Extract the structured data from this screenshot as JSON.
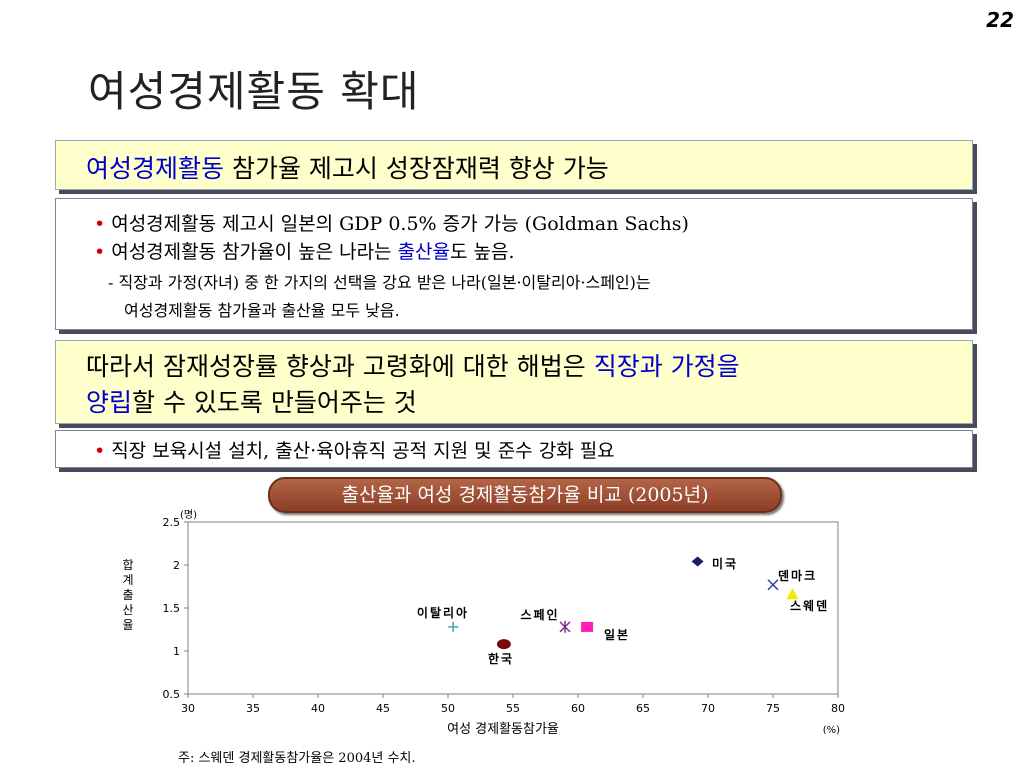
{
  "page_number": "22",
  "title": "여성경제활동 확대",
  "headline": {
    "blue_part": "여성경제활동",
    "black_part": " 참가율 제고시 성장잠재력 향상 가능"
  },
  "points": {
    "bullet1": "여성경제활동 제고시 일본의 GDP 0.5% 증가 가능 (Goldman Sachs)",
    "bullet2_before": "여성경제활동 참가율이 높은 나라는 ",
    "bullet2_blue": "출산율",
    "bullet2_after": "도 높음.",
    "sub1": "- 직장과 가정(자녀) 중 한 가지의 선택을 강요 받은 나라(일본·이탈리아·스페인)는",
    "sub2": "여성경제활동 참가율과 출산율 모두 낮음."
  },
  "solution": {
    "line1_black": "따라서 잠재성장률 향상과 고령화에 대한 해법은 ",
    "line1_blue": "직장과 가정을",
    "line2_blue": "양립",
    "line2_black": "할 수 있도록 만들어주는 것"
  },
  "action": {
    "bullet": "직장 보육시설 설치, 출산·육아휴직 공적 지원 및 준수 강화 필요"
  },
  "chart_title": "출산율과 여성 경제활동참가율 비교 (2005년)",
  "footnote": "주: 스웨덴 경제활동참가율은 2004년 수치.",
  "chart_data": {
    "type": "scatter",
    "title": "출산율과 여성 경제활동참가율 비교 (2005년)",
    "xlabel": "여성 경제활동참가율",
    "x_unit": "(%)",
    "ylabel": "합계출산율",
    "y_unit": "(명)",
    "xlim": [
      30,
      80
    ],
    "ylim": [
      0.5,
      2.5
    ],
    "x_ticks": [
      "30",
      "35",
      "40",
      "45",
      "50",
      "55",
      "60",
      "65",
      "70",
      "75",
      "80"
    ],
    "y_ticks": [
      "0.5",
      "1",
      "1.5",
      "2",
      "2.5"
    ],
    "grid": false,
    "points": [
      {
        "name": "미국",
        "x": 69.2,
        "y": 2.04,
        "marker": "diamond",
        "color": "#1a1a6e"
      },
      {
        "name": "덴마크",
        "x": 75.0,
        "y": 1.77,
        "marker": "x",
        "color": "#2c3fa6"
      },
      {
        "name": "스웨덴",
        "x": 76.5,
        "y": 1.66,
        "marker": "triangle",
        "color": "#f2e800"
      },
      {
        "name": "이탈리아",
        "x": 50.4,
        "y": 1.28,
        "marker": "plus",
        "color": "#3aa6a6"
      },
      {
        "name": "스페인",
        "x": 59.0,
        "y": 1.28,
        "marker": "asterisk",
        "color": "#7a2a8a"
      },
      {
        "name": "일본",
        "x": 60.7,
        "y": 1.28,
        "marker": "square",
        "color": "#ff1fb4"
      },
      {
        "name": "한국",
        "x": 54.3,
        "y": 1.08,
        "marker": "circle",
        "color": "#7a0a0a"
      }
    ]
  }
}
